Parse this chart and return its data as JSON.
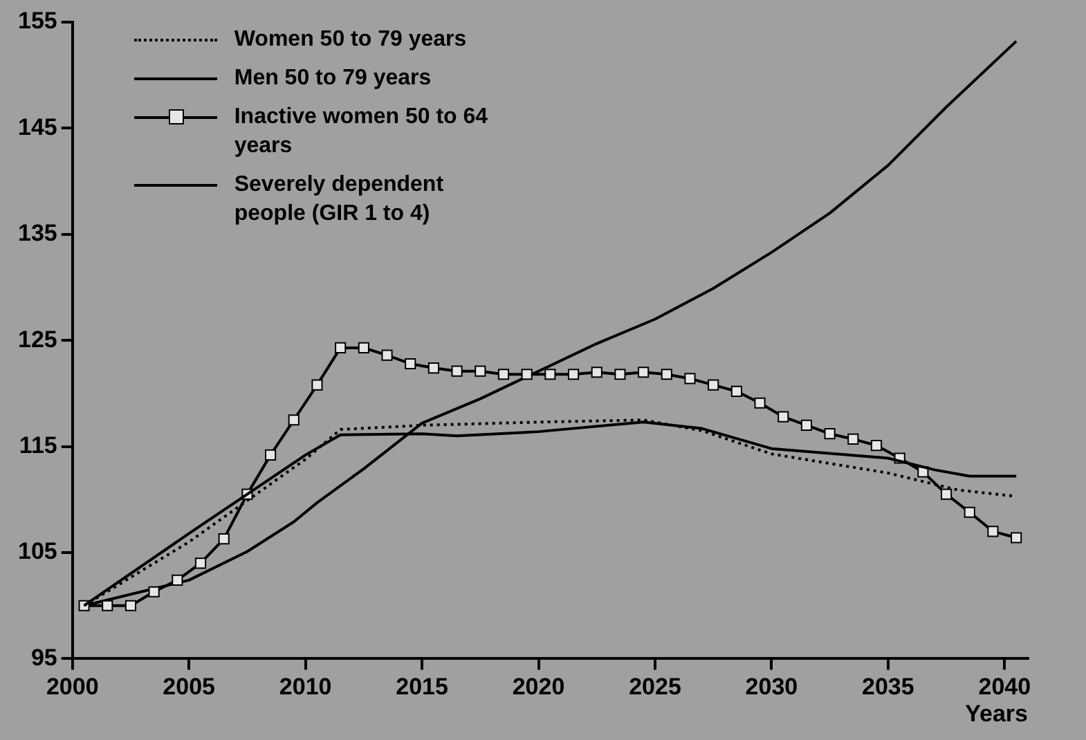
{
  "chart_data": {
    "type": "line",
    "xlabel": "Years",
    "xlim": [
      2000,
      2041
    ],
    "xticks": [
      2000,
      2005,
      2010,
      2015,
      2020,
      2025,
      2030,
      2035,
      2040
    ],
    "ylim": [
      95,
      155
    ],
    "yticks": [
      95,
      105,
      115,
      125,
      135,
      145,
      155
    ],
    "legend": "top left",
    "marker": "none",
    "line_style": "solid",
    "series": [
      {
        "name": "Women 50 to 79 years",
        "color": "#000000",
        "line_style": "dotted",
        "x": [
          2000.5,
          2005,
          2010,
          2011.5,
          2015,
          2020,
          2024.5,
          2027,
          2030,
          2035,
          2038,
          2040.5
        ],
        "values": [
          100,
          106.0,
          113.8,
          116.6,
          117.0,
          117.3,
          117.5,
          116.5,
          114.3,
          112.5,
          110.9,
          110.3
        ]
      },
      {
        "name": "Men 50 to 79 years",
        "color": "#000000",
        "x": [
          2000.5,
          2005,
          2010,
          2011.5,
          2015,
          2016.5,
          2020,
          2024.5,
          2027,
          2030,
          2035,
          2037,
          2038.5,
          2040.5
        ],
        "values": [
          100,
          106.8,
          114.2,
          116.1,
          116.2,
          116.0,
          116.4,
          117.3,
          116.7,
          114.8,
          113.9,
          112.8,
          112.2,
          112.2
        ]
      },
      {
        "name": "Inactive women 50 to 64 years",
        "color": "#000000",
        "marker": "square",
        "x": [
          2000.5,
          2001.5,
          2002.5,
          2003.5,
          2004.5,
          2005.5,
          2006.5,
          2007.5,
          2008.5,
          2009.5,
          2010.5,
          2011.5,
          2012.5,
          2013.5,
          2014.5,
          2015.5,
          2016.5,
          2017.5,
          2018.5,
          2019.5,
          2020.5,
          2021.5,
          2022.5,
          2023.5,
          2024.5,
          2025.5,
          2026.5,
          2027.5,
          2028.5,
          2029.5,
          2030.5,
          2031.5,
          2032.5,
          2033.5,
          2034.5,
          2035.5,
          2036.5,
          2037.5,
          2038.5,
          2039.5,
          2040.5
        ],
        "values": [
          100,
          100,
          100,
          101.3,
          102.4,
          104.0,
          106.3,
          110.5,
          114.2,
          117.5,
          120.8,
          124.3,
          124.3,
          123.6,
          122.8,
          122.4,
          122.1,
          122.1,
          121.8,
          121.8,
          121.8,
          121.8,
          122.0,
          121.8,
          122.0,
          121.8,
          121.4,
          120.8,
          120.2,
          119.1,
          117.8,
          117.0,
          116.2,
          115.7,
          115.1,
          113.9,
          112.6,
          110.5,
          108.8,
          107.0,
          106.4
        ]
      },
      {
        "name": "Severely dependent people (GIR 1 to 4)",
        "color": "#000000",
        "x": [
          2000.5,
          2005,
          2007.5,
          2009.5,
          2010.5,
          2012.5,
          2015,
          2017.5,
          2020,
          2022.5,
          2025,
          2027.5,
          2030,
          2032.5,
          2035,
          2037.5,
          2040.5
        ],
        "values": [
          100,
          102.4,
          105.1,
          107.9,
          109.7,
          112.9,
          117.2,
          119.5,
          122.1,
          124.7,
          127.0,
          129.9,
          133.3,
          137.0,
          141.5,
          147.0,
          153.2
        ]
      }
    ]
  }
}
